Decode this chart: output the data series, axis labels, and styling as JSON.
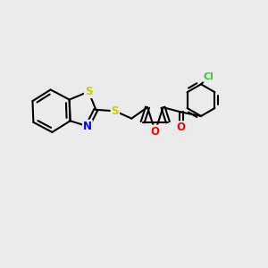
{
  "background_color": "#ebebeb",
  "bond_color": "#000000",
  "atom_colors": {
    "S": "#cccc00",
    "N": "#0000ff",
    "O": "#ff0000",
    "Cl": "#33cc33",
    "C": "#000000"
  },
  "bond_width": 1.5,
  "figsize": [
    3.0,
    3.0
  ],
  "dpi": 100
}
